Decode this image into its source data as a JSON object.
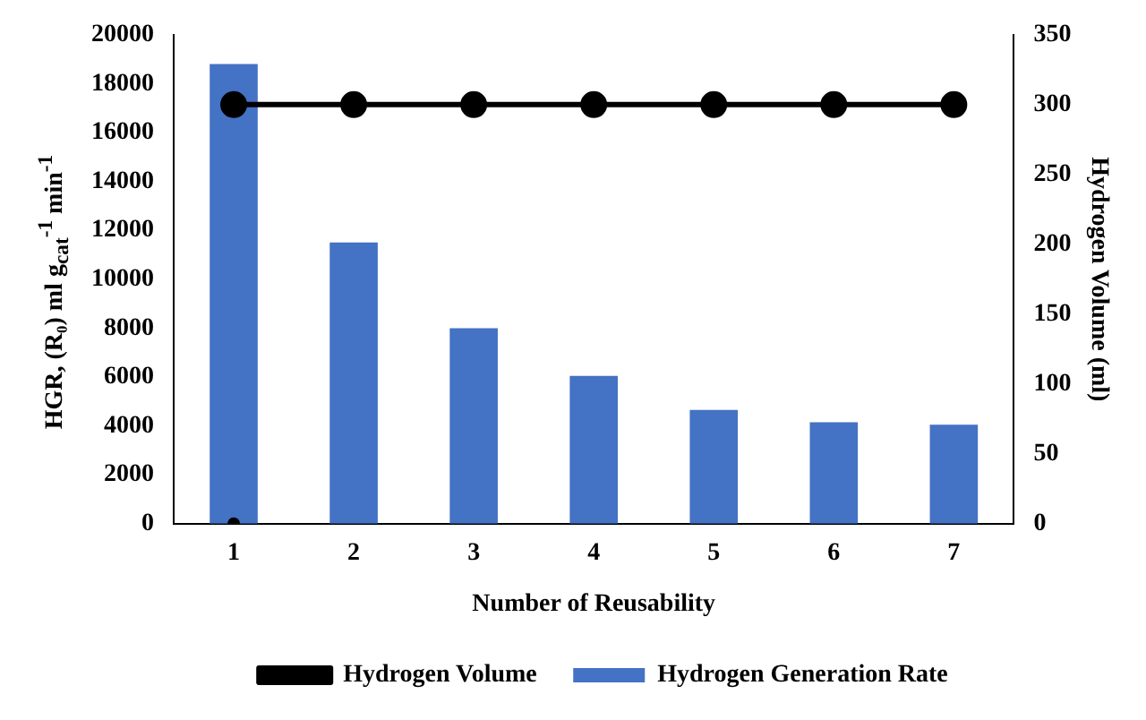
{
  "chart_data": {
    "type": "bar",
    "categories": [
      "1",
      "2",
      "3",
      "4",
      "5",
      "6",
      "7"
    ],
    "series": [
      {
        "name": "Hydrogen Generation Rate",
        "color": "#4472c4",
        "values": [
          18800,
          11500,
          8000,
          6050,
          4650,
          4150,
          4050
        ]
      },
      {
        "name": "Hydrogen Volume",
        "type": "line",
        "axis": "y2",
        "color": "#000000",
        "marker": "circle",
        "values": [
          300,
          300,
          300,
          300,
          300,
          300,
          300
        ]
      },
      {
        "type": "scatter",
        "color": "#000000",
        "x": [
          "1"
        ],
        "values": [
          0
        ]
      }
    ],
    "xlabel": "Number of Reusability",
    "ylabel": "HGR, (R₀)  ml g$_{cat}$$^{-1}$ min$^{-1}$",
    "y2label": "Hydrogen Volume (ml)",
    "ylim": [
      0,
      20000
    ],
    "yticks": [
      0,
      2000,
      4000,
      6000,
      8000,
      10000,
      12000,
      14000,
      16000,
      18000,
      20000
    ],
    "y2lim": [
      0,
      350
    ],
    "y2ticks": [
      0,
      50,
      100,
      150,
      200,
      250,
      300,
      350
    ],
    "grid": false,
    "legend": "bottom"
  }
}
